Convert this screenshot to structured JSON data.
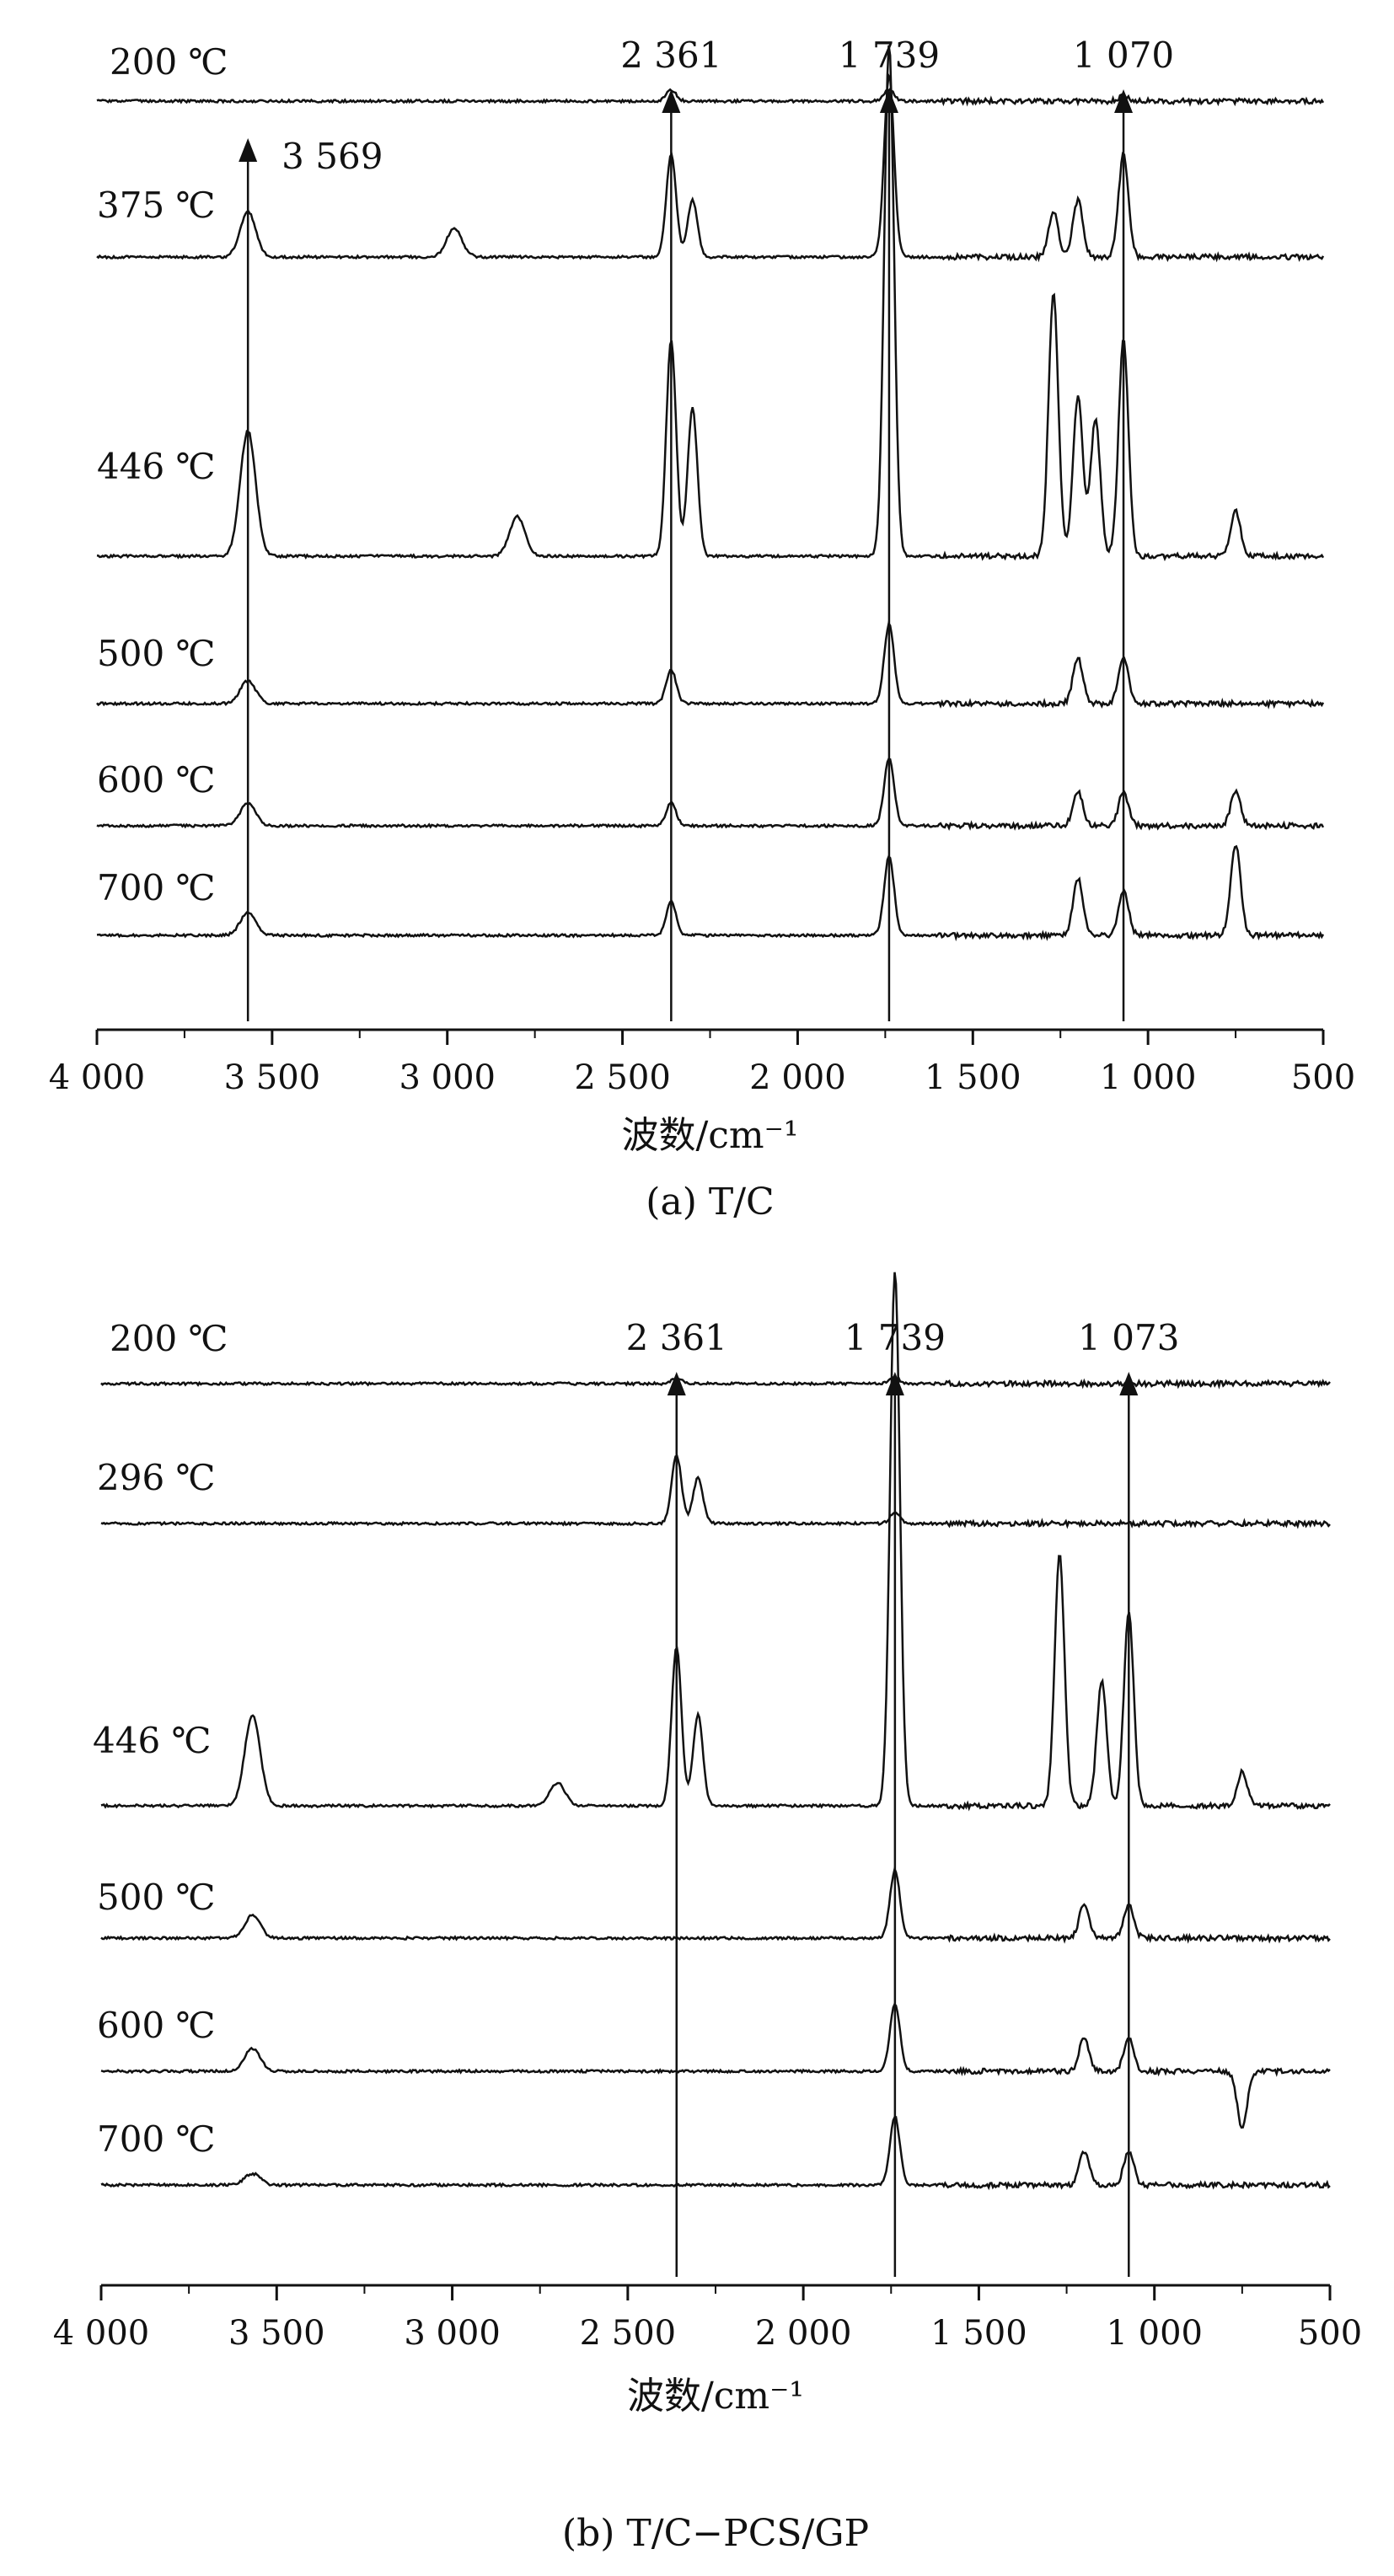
{
  "chart_data": [
    {
      "type": "line",
      "panel": "a",
      "caption": "(a) T/C",
      "xlabel": "波数/cm⁻¹",
      "xlim": [
        4000,
        500
      ],
      "x_ticks": [
        4000,
        3500,
        3000,
        2500,
        2000,
        1500,
        1000,
        500
      ],
      "x_tick_labels": [
        "4 000",
        "3 500",
        "3 000",
        "2 500",
        "2 000",
        "1 500",
        "1 000",
        "500"
      ],
      "peak_markers": [
        {
          "x": 3569,
          "label": "3 569"
        },
        {
          "x": 2361,
          "label": "2 361"
        },
        {
          "x": 1739,
          "label": "1 739"
        },
        {
          "x": 1070,
          "label": "1 070"
        }
      ],
      "series": [
        {
          "name": "200 ℃",
          "peaks": [
            [
              2361,
              0.1
            ],
            [
              1739,
              0.1
            ],
            [
              1070,
              0.05
            ]
          ]
        },
        {
          "name": "375 ℃",
          "peaks": [
            [
              3569,
              0.4
            ],
            [
              2980,
              0.25
            ],
            [
              2361,
              0.9
            ],
            [
              2300,
              0.5
            ],
            [
              1739,
              1.6
            ],
            [
              1270,
              0.4
            ],
            [
              1200,
              0.5
            ],
            [
              1070,
              0.9
            ]
          ]
        },
        {
          "name": "446 ℃",
          "peaks": [
            [
              3569,
              1.1
            ],
            [
              2800,
              0.35
            ],
            [
              2361,
              1.9
            ],
            [
              2300,
              1.3
            ],
            [
              1739,
              4.5
            ],
            [
              1270,
              2.3
            ],
            [
              1200,
              1.4
            ],
            [
              1150,
              1.2
            ],
            [
              1070,
              1.9
            ],
            [
              750,
              0.4
            ]
          ]
        },
        {
          "name": "500 ℃",
          "peaks": [
            [
              3569,
              0.2
            ],
            [
              2361,
              0.3
            ],
            [
              1739,
              0.7
            ],
            [
              1200,
              0.4
            ],
            [
              1070,
              0.4
            ]
          ]
        },
        {
          "name": "600 ℃",
          "peaks": [
            [
              3569,
              0.2
            ],
            [
              2361,
              0.2
            ],
            [
              1739,
              0.6
            ],
            [
              1200,
              0.3
            ],
            [
              1070,
              0.3
            ],
            [
              750,
              0.3
            ]
          ]
        },
        {
          "name": "700 ℃",
          "peaks": [
            [
              3569,
              0.2
            ],
            [
              2361,
              0.3
            ],
            [
              1739,
              0.7
            ],
            [
              1200,
              0.5
            ],
            [
              1070,
              0.4
            ],
            [
              750,
              0.8
            ]
          ]
        }
      ]
    },
    {
      "type": "line",
      "panel": "b",
      "caption": "(b) T/C−PCS/GP",
      "xlabel": "波数/cm⁻¹",
      "xlim": [
        4000,
        500
      ],
      "x_ticks": [
        4000,
        3500,
        3000,
        2500,
        2000,
        1500,
        1000,
        500
      ],
      "x_tick_labels": [
        "4 000",
        "3 500",
        "3 000",
        "2 500",
        "2 000",
        "1 500",
        "1 000",
        "500"
      ],
      "peak_markers": [
        {
          "x": 2361,
          "label": "2 361"
        },
        {
          "x": 1739,
          "label": "1 739"
        },
        {
          "x": 1073,
          "label": "1 073"
        }
      ],
      "series": [
        {
          "name": "200 ℃",
          "peaks": [
            [
              2361,
              0.05
            ],
            [
              1739,
              0.05
            ]
          ]
        },
        {
          "name": "296 ℃",
          "peaks": [
            [
              2361,
              0.6
            ],
            [
              2300,
              0.4
            ],
            [
              1739,
              0.1
            ]
          ]
        },
        {
          "name": "446 ℃",
          "peaks": [
            [
              3569,
              0.8
            ],
            [
              2700,
              0.2
            ],
            [
              2361,
              1.4
            ],
            [
              2300,
              0.8
            ],
            [
              1739,
              4.7
            ],
            [
              1270,
              2.2
            ],
            [
              1150,
              1.1
            ],
            [
              1073,
              1.7
            ],
            [
              750,
              0.3
            ]
          ]
        },
        {
          "name": "500 ℃",
          "peaks": [
            [
              3569,
              0.2
            ],
            [
              1739,
              0.6
            ],
            [
              1200,
              0.3
            ],
            [
              1073,
              0.3
            ]
          ]
        },
        {
          "name": "600 ℃",
          "peaks": [
            [
              3569,
              0.2
            ],
            [
              1739,
              0.6
            ],
            [
              1200,
              0.3
            ],
            [
              1073,
              0.3
            ],
            [
              750,
              -0.5
            ]
          ]
        },
        {
          "name": "700 ℃",
          "peaks": [
            [
              3569,
              0.1
            ],
            [
              1739,
              0.6
            ],
            [
              1200,
              0.3
            ],
            [
              1073,
              0.3
            ]
          ]
        }
      ]
    }
  ]
}
